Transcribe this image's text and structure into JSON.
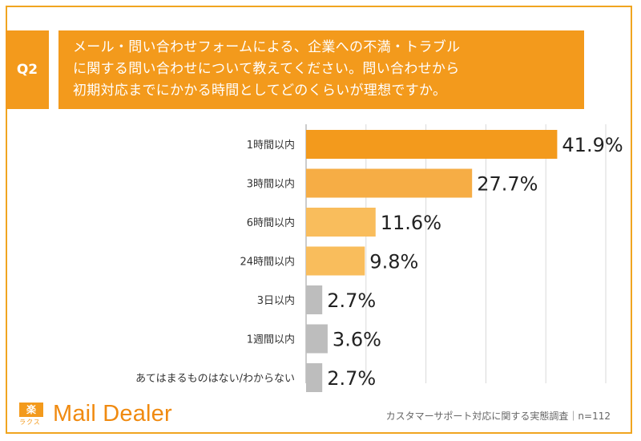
{
  "question": {
    "label": "Q2",
    "lines": [
      "メール・問い合わせフォームによる、企業への不満・トラブル",
      "に関する問い合わせについて教えてください。問い合わせから",
      "初期対応までにかかる時間としてどのくらいが理想ですか。"
    ]
  },
  "chart_data": {
    "type": "bar",
    "orientation": "horizontal",
    "categories": [
      "1時間以内",
      "3時間以内",
      "6時間以内",
      "24時間以内",
      "3日以内",
      "1週間以内",
      "あてはまるものはない/わからない"
    ],
    "values": [
      41.9,
      27.7,
      11.6,
      9.8,
      2.7,
      3.6,
      2.7
    ],
    "value_labels": [
      "41.9%",
      "27.7%",
      "11.6%",
      "9.8%",
      "2.7%",
      "3.6%",
      "2.7%"
    ],
    "colors": [
      "#f39a1c",
      "#f6ad45",
      "#f9bd5c",
      "#f9bd5c",
      "#bdbdbd",
      "#bdbdbd",
      "#bdbdbd"
    ],
    "xlim": [
      0,
      50
    ],
    "grid": true
  },
  "footer": {
    "logo_mark": "楽",
    "logo_sub": "ラクス",
    "logo_text": "Mail Dealer",
    "note": "カスタマーサポート対応に関する実態調査｜n=112"
  }
}
